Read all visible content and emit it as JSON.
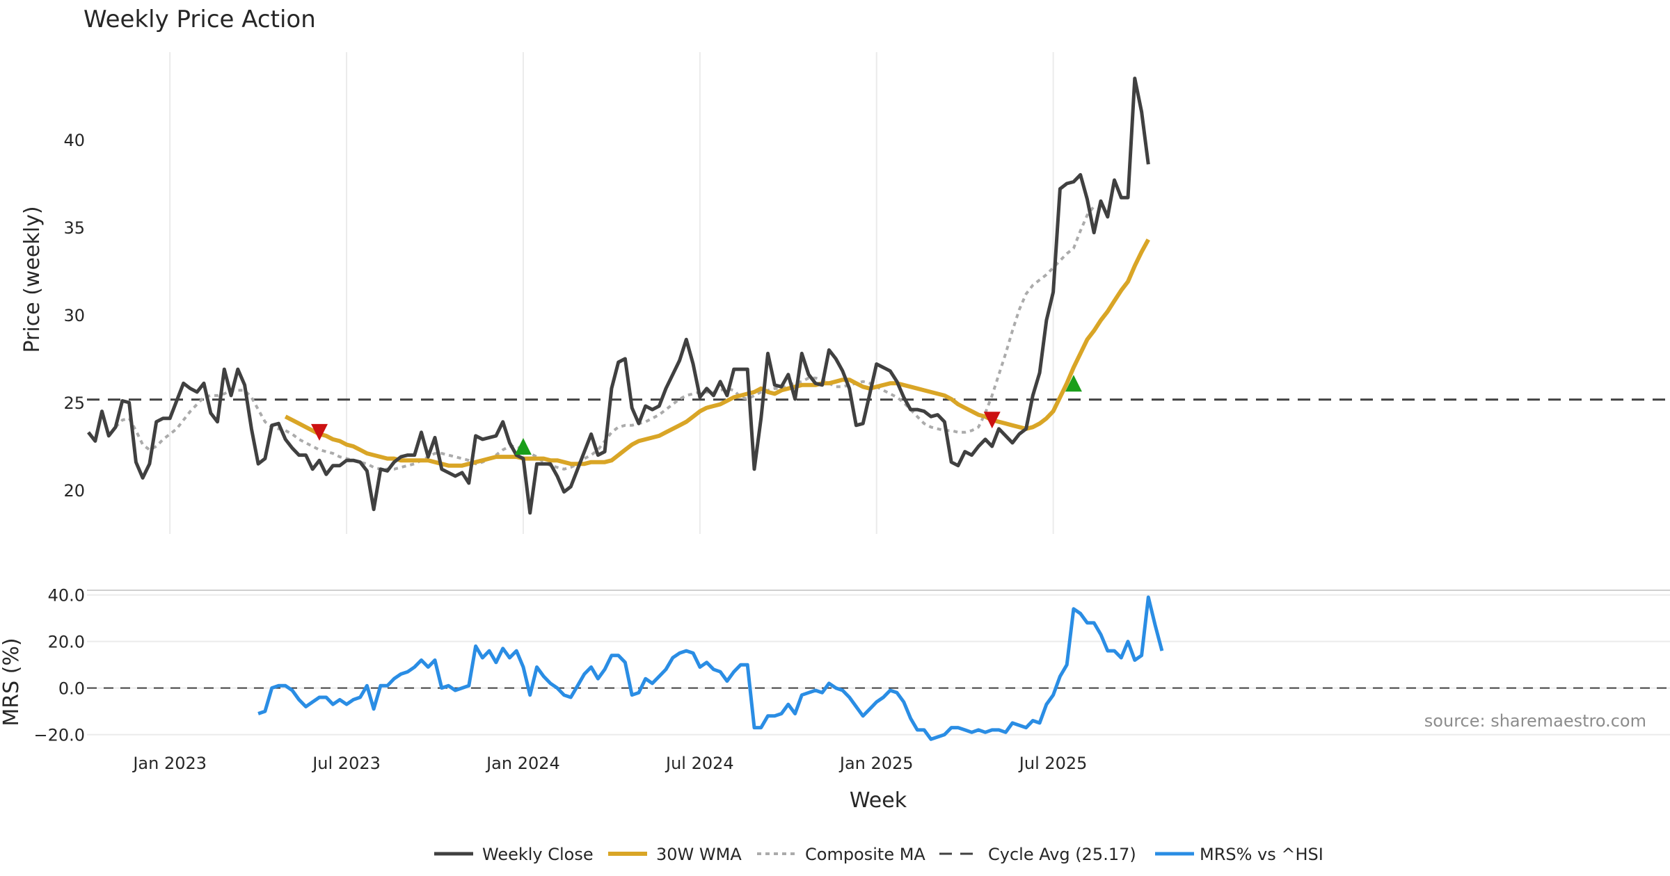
{
  "chart_data": {
    "type": "line",
    "title": "Weekly Price Action",
    "xlabel": "Week",
    "source": "source: sharemaestro.com",
    "x_ticks": [
      "Jan 2023",
      "Jul 2023",
      "Jan 2024",
      "Jul 2024",
      "Jan 2025",
      "Jul 2025"
    ],
    "x_tick_index": [
      12,
      38,
      64,
      90,
      116,
      142
    ],
    "price_panel": {
      "ylabel": "Price (weekly)",
      "ylim": [
        17.5,
        45
      ],
      "yticks": [
        20,
        25,
        30,
        35,
        40
      ],
      "cycle_avg": 25.17
    },
    "mrs_panel": {
      "ylabel": "MRS (%)",
      "ylim": [
        -24,
        42
      ],
      "yticks": [
        -20,
        0,
        20,
        40
      ],
      "ytick_labels": [
        "−20.0",
        "0.0",
        "20.0",
        "40.0"
      ]
    },
    "series": [
      {
        "name": "Weekly Close",
        "start_index": 0,
        "color": "#404040",
        "values": [
          23.3,
          22.8,
          24.5,
          23.1,
          23.6,
          25.1,
          25.0,
          21.6,
          20.7,
          21.5,
          23.9,
          24.1,
          24.1,
          25.1,
          26.1,
          25.8,
          25.6,
          26.1,
          24.4,
          23.9,
          26.9,
          25.4,
          26.9,
          26.0,
          23.5,
          21.5,
          21.8,
          23.7,
          23.8,
          22.9,
          22.4,
          22.0,
          22.0,
          21.2,
          21.7,
          20.9,
          21.4,
          21.4,
          21.7,
          21.7,
          21.6,
          21.1,
          18.9,
          21.2,
          21.1,
          21.6,
          21.9,
          22.0,
          22.0,
          23.3,
          21.9,
          23.0,
          21.2,
          21.0,
          20.8,
          21.0,
          20.4,
          23.1,
          22.9,
          23.0,
          23.1,
          23.9,
          22.7,
          22.0,
          21.8,
          18.7,
          21.5,
          21.5,
          21.5,
          20.8,
          19.9,
          20.2,
          21.2,
          22.2,
          23.2,
          22.0,
          22.2,
          25.8,
          27.3,
          27.5,
          24.7,
          23.8,
          24.8,
          24.6,
          24.8,
          25.8,
          26.6,
          27.4,
          28.6,
          27.2,
          25.3,
          25.8,
          25.4,
          26.2,
          25.4,
          26.9,
          26.9,
          26.9,
          21.2,
          24.1,
          27.8,
          26.0,
          25.9,
          26.6,
          25.2,
          27.8,
          26.6,
          26.1,
          26.0,
          28.0,
          27.5,
          26.8,
          25.8,
          23.7,
          23.8,
          25.5,
          27.2,
          27.0,
          26.8,
          26.2,
          25.3,
          24.6,
          24.6,
          24.5,
          24.2,
          24.3,
          23.9,
          21.6,
          21.4,
          22.2,
          22.0,
          22.5,
          22.9,
          22.5,
          23.5,
          23.1,
          22.7,
          23.2,
          23.5,
          25.4,
          26.7,
          29.7,
          31.3,
          37.2,
          37.5,
          37.6,
          38.0,
          36.6,
          34.7,
          36.5,
          35.6,
          37.7,
          36.7,
          36.7,
          43.5,
          41.6,
          38.6
        ]
      },
      {
        "name": "30W WMA",
        "start_index": 29,
        "color": "#d9a526",
        "values": [
          24.2,
          24.0,
          23.8,
          23.6,
          23.4,
          23.2,
          23.1,
          22.9,
          22.8,
          22.6,
          22.5,
          22.3,
          22.1,
          22.0,
          21.9,
          21.8,
          21.8,
          21.7,
          21.7,
          21.7,
          21.7,
          21.7,
          21.6,
          21.5,
          21.4,
          21.4,
          21.4,
          21.5,
          21.6,
          21.7,
          21.8,
          21.9,
          21.9,
          21.9,
          21.9,
          21.8,
          21.8,
          21.8,
          21.8,
          21.7,
          21.7,
          21.6,
          21.5,
          21.5,
          21.5,
          21.6,
          21.6,
          21.6,
          21.7,
          22.0,
          22.3,
          22.6,
          22.8,
          22.9,
          23.0,
          23.1,
          23.3,
          23.5,
          23.7,
          23.9,
          24.2,
          24.5,
          24.7,
          24.8,
          24.9,
          25.1,
          25.3,
          25.4,
          25.5,
          25.6,
          25.8,
          25.6,
          25.5,
          25.7,
          25.8,
          25.9,
          26.0,
          26.0,
          26.0,
          26.1,
          26.1,
          26.2,
          26.3,
          26.3,
          26.1,
          25.9,
          25.8,
          25.9,
          26.0,
          26.1,
          26.1,
          26.0,
          25.9,
          25.8,
          25.7,
          25.6,
          25.5,
          25.4,
          25.2,
          24.9,
          24.7,
          24.5,
          24.3,
          24.2,
          24.0,
          23.9,
          23.8,
          23.7,
          23.6,
          23.5,
          23.6,
          23.8,
          24.1,
          24.5,
          25.3,
          26.1,
          27.0,
          27.8,
          28.6,
          29.1,
          29.7,
          30.2,
          30.8,
          31.4,
          31.9,
          32.8,
          33.6,
          34.3
        ]
      },
      {
        "name": "Composite MA",
        "start_index": 4,
        "color": "#ababab",
        "values": [
          23.6,
          24.0,
          24.1,
          23.4,
          22.6,
          22.3,
          22.5,
          22.9,
          23.2,
          23.5,
          24.0,
          24.5,
          24.9,
          25.3,
          25.4,
          25.4,
          25.5,
          25.7,
          25.7,
          25.7,
          25.3,
          24.6,
          23.9,
          23.6,
          23.5,
          23.4,
          23.2,
          22.9,
          22.7,
          22.5,
          22.3,
          22.2,
          22.1,
          21.9,
          21.8,
          21.7,
          21.6,
          21.5,
          21.3,
          21.2,
          21.2,
          21.2,
          21.3,
          21.4,
          21.5,
          21.7,
          21.9,
          22.1,
          22.1,
          22.0,
          21.9,
          21.8,
          21.7,
          21.5,
          21.6,
          21.8,
          22.0,
          22.3,
          22.5,
          22.5,
          22.3,
          22.1,
          21.9,
          21.6,
          21.4,
          21.3,
          21.2,
          21.3,
          21.5,
          21.8,
          22.0,
          22.3,
          22.8,
          23.3,
          23.6,
          23.7,
          23.7,
          23.8,
          23.9,
          24.1,
          24.3,
          24.6,
          24.9,
          25.2,
          25.4,
          25.5,
          25.6,
          25.6,
          25.6,
          25.7,
          25.8,
          25.7,
          25.3,
          25.2,
          25.4,
          25.6,
          25.7,
          25.8,
          25.8,
          26.0,
          26.1,
          26.2,
          26.4,
          26.4,
          26.3,
          26.1,
          25.9,
          25.9,
          26.0,
          26.1,
          26.2,
          26.1,
          25.9,
          25.7,
          25.5,
          25.3,
          25.0,
          24.6,
          24.2,
          23.8,
          23.6,
          23.5,
          23.4,
          23.4,
          23.3,
          23.3,
          23.4,
          23.6,
          24.4,
          25.4,
          26.6,
          27.8,
          29.1,
          30.3,
          31.2,
          31.7,
          32.0,
          32.3,
          32.7,
          33.1,
          33.5,
          33.8,
          34.8,
          35.7,
          36.2
        ]
      },
      {
        "name": "Cycle Avg (25.17)",
        "color": "#404040",
        "constant": 25.17
      },
      {
        "name": "MRS% vs ^HSI",
        "start_index": 25,
        "color": "#2a8de4",
        "values": [
          -11,
          -10,
          0,
          1,
          1,
          -1,
          -5,
          -8,
          -6,
          -4,
          -4,
          -7,
          -5,
          -7,
          -5,
          -4,
          1,
          -9,
          1,
          1,
          4,
          6,
          7,
          9,
          12,
          9,
          12,
          0,
          1,
          -1,
          0,
          1,
          18,
          13,
          16,
          11,
          17,
          13,
          16,
          9,
          -3,
          9,
          5,
          2,
          0,
          -3,
          -4,
          1,
          6,
          9,
          4,
          8,
          14,
          14,
          11,
          -3,
          -2,
          4,
          2,
          5,
          8,
          13,
          15,
          16,
          15,
          9,
          11,
          8,
          7,
          3,
          7,
          10,
          10,
          -17,
          -17,
          -12,
          -12,
          -11,
          -7,
          -11,
          -3,
          -2,
          -1,
          -2,
          2,
          0,
          -1,
          -4,
          -8,
          -12,
          -9,
          -6,
          -4,
          -1,
          -2,
          -6,
          -13,
          -18,
          -18,
          -22,
          -21,
          -20,
          -17,
          -17,
          -18,
          -19,
          -18,
          -19,
          -18,
          -18,
          -19,
          -15,
          -16,
          -17,
          -14,
          -15,
          -7,
          -3,
          5,
          10,
          34,
          32,
          28,
          28,
          23,
          16,
          16,
          13,
          20,
          12,
          14,
          39,
          27,
          16
        ]
      }
    ],
    "signals": [
      {
        "type": "sell",
        "index": 34,
        "value": 23.3,
        "color": "#cc1111"
      },
      {
        "type": "buy",
        "index": 64,
        "value": 22.5,
        "color": "#1a9e1a"
      },
      {
        "type": "sell",
        "index": 133,
        "value": 24.0,
        "color": "#cc1111"
      },
      {
        "type": "buy",
        "index": 145,
        "value": 26.1,
        "color": "#1a9e1a"
      }
    ],
    "legend": [
      "Weekly Close",
      "30W WMA",
      "Composite MA",
      "Cycle Avg (25.17)",
      "MRS% vs ^HSI"
    ],
    "legend_position": "bottom-center"
  }
}
